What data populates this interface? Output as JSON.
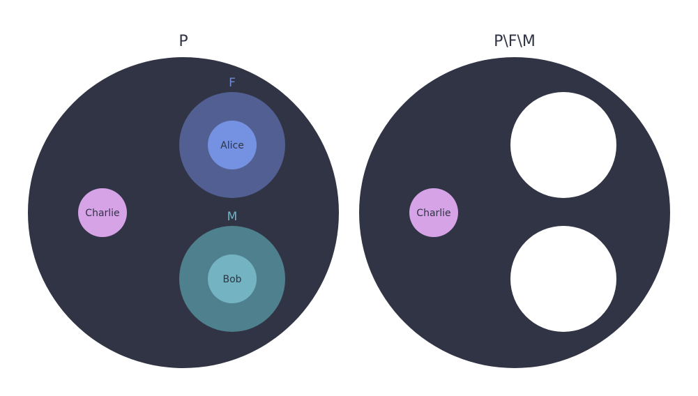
{
  "colors": {
    "universe": "#303444",
    "set_f_outer": "#525f92",
    "set_f_inner": "#7592e2",
    "set_f_label": "#6f8ad7",
    "set_m_outer": "#4e818d",
    "set_m_inner": "#74b3c1",
    "set_m_label": "#72b4c4",
    "charlie": "#d6a3e7",
    "hole": "#ffffff",
    "text_dark": "#2f3344"
  },
  "left_panel": {
    "title": "P",
    "set_f": {
      "label": "F",
      "member": "Alice"
    },
    "set_m": {
      "label": "M",
      "member": "Bob"
    },
    "outside_member": "Charlie"
  },
  "right_panel": {
    "title": "P\\F\\M",
    "outside_member": "Charlie"
  }
}
